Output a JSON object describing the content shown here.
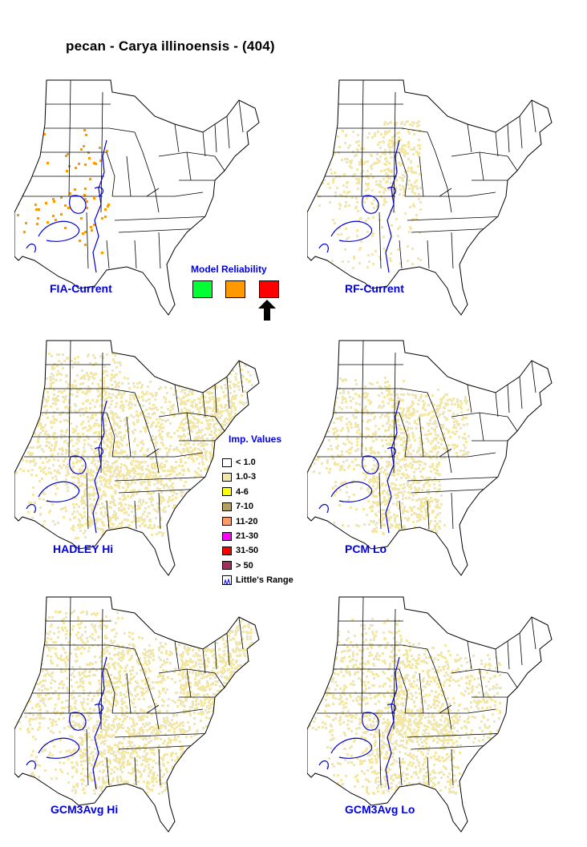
{
  "title": "pecan - Carya illinoensis - (404)",
  "maps": [
    {
      "label": "FIA-Current",
      "density": "very-low"
    },
    {
      "label": "RF-Current",
      "density": "low"
    },
    {
      "label": "HADLEY Hi",
      "density": "high"
    },
    {
      "label": "PCM Lo",
      "density": "medium"
    },
    {
      "label": "GCM3Avg Hi",
      "density": "high"
    },
    {
      "label": "GCM3Avg Lo",
      "density": "medium-high"
    }
  ],
  "reliability": {
    "title": "Model Reliability",
    "boxes": [
      {
        "color": "#00ff33"
      },
      {
        "color": "#ff9900"
      },
      {
        "color": "#ff0000",
        "selected": true
      }
    ]
  },
  "legend": {
    "title": "Imp. Values",
    "items": [
      {
        "label": "< 1.0",
        "color": "#ffffff"
      },
      {
        "label": "1.0-3",
        "color": "#f2e6a8"
      },
      {
        "label": "4-6",
        "color": "#ffff00"
      },
      {
        "label": "7-10",
        "color": "#b4a060"
      },
      {
        "label": "11-20",
        "color": "#ff9966"
      },
      {
        "label": "21-30",
        "color": "#ff00ff"
      },
      {
        "label": "31-50",
        "color": "#ff0000"
      },
      {
        "label": "> 50",
        "color": "#a0305a"
      }
    ],
    "range_label": "Little's Range"
  },
  "colors": {
    "label_blue": "#0000e0",
    "range_line": "#0000cc",
    "state_lines": "#000000",
    "fia_dots": "#ff9900",
    "model_dots": "#f2e6a8"
  }
}
